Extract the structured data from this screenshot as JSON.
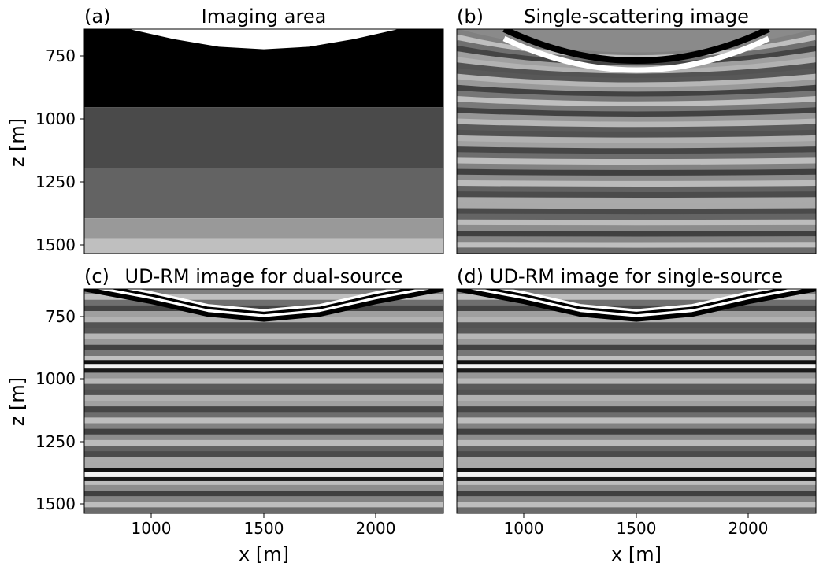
{
  "panels": [
    {
      "label": "(a)",
      "title": "Imaging area"
    },
    {
      "label": "(b)",
      "title": "Single-scattering image"
    },
    {
      "label": "(c)",
      "title": "UD-RM image for dual-source"
    },
    {
      "label": "(d)",
      "title": "UD-RM image for single-source"
    }
  ],
  "x_ticks": [
    "1000",
    "1500",
    "2000"
  ],
  "y_ticks": [
    "750",
    "1000",
    "1250",
    "1500"
  ],
  "xlabel": "x [m]",
  "ylabel": "z [m]",
  "chart_data": [
    {
      "type": "heatmap",
      "label": "(a)",
      "title": "Imaging area",
      "xlabel": "",
      "ylabel": "z [m]",
      "xlim": [
        700,
        2300
      ],
      "ylim": [
        1540,
        650
      ],
      "interface_curve": {
        "x": [
          700,
          900,
          1100,
          1300,
          1500,
          1700,
          1900,
          2100,
          2300
        ],
        "z": [
          620,
          650,
          690,
          720,
          730,
          720,
          690,
          650,
          620
        ]
      },
      "layers": [
        {
          "z_top": 650,
          "z_bottom": 960,
          "gray": 0.0
        },
        {
          "z_top": 960,
          "z_bottom": 1200,
          "gray": 0.29
        },
        {
          "z_top": 1200,
          "z_bottom": 1400,
          "gray": 0.39
        },
        {
          "z_top": 1400,
          "z_bottom": 1480,
          "gray": 0.6
        },
        {
          "z_top": 1480,
          "z_bottom": 1540,
          "gray": 0.75
        }
      ],
      "colormap": "gray",
      "above_interface": "white"
    },
    {
      "type": "heatmap",
      "label": "(b)",
      "title": "Single-scattering image",
      "xlabel": "",
      "ylabel": "",
      "xlim": [
        700,
        2300
      ],
      "ylim": [
        1540,
        650
      ],
      "colormap": "gray",
      "pattern": "horizontal oscillating reflections with curved event near top"
    },
    {
      "type": "heatmap",
      "label": "(c)",
      "title": "UD-RM image for dual-source",
      "xlabel": "x [m]",
      "ylabel": "z [m]",
      "xlim": [
        700,
        2300
      ],
      "ylim": [
        1540,
        650
      ],
      "colormap": "gray",
      "curved_reflector": {
        "x": [
          700,
          1000,
          1250,
          1500,
          1750,
          2000,
          2300
        ],
        "z": [
          640,
          690,
          740,
          760,
          740,
          690,
          640
        ]
      },
      "flat_reflectors_z": [
        960,
        1390
      ]
    },
    {
      "type": "heatmap",
      "label": "(d)",
      "title": "UD-RM image for single-source",
      "xlabel": "x [m]",
      "ylabel": "",
      "xlim": [
        700,
        2300
      ],
      "ylim": [
        1540,
        650
      ],
      "colormap": "gray",
      "curved_reflector": {
        "x": [
          700,
          1000,
          1250,
          1500,
          1750,
          2000,
          2300
        ],
        "z": [
          640,
          690,
          740,
          760,
          740,
          690,
          640
        ]
      },
      "flat_reflectors_z": [
        960,
        1390
      ]
    }
  ]
}
